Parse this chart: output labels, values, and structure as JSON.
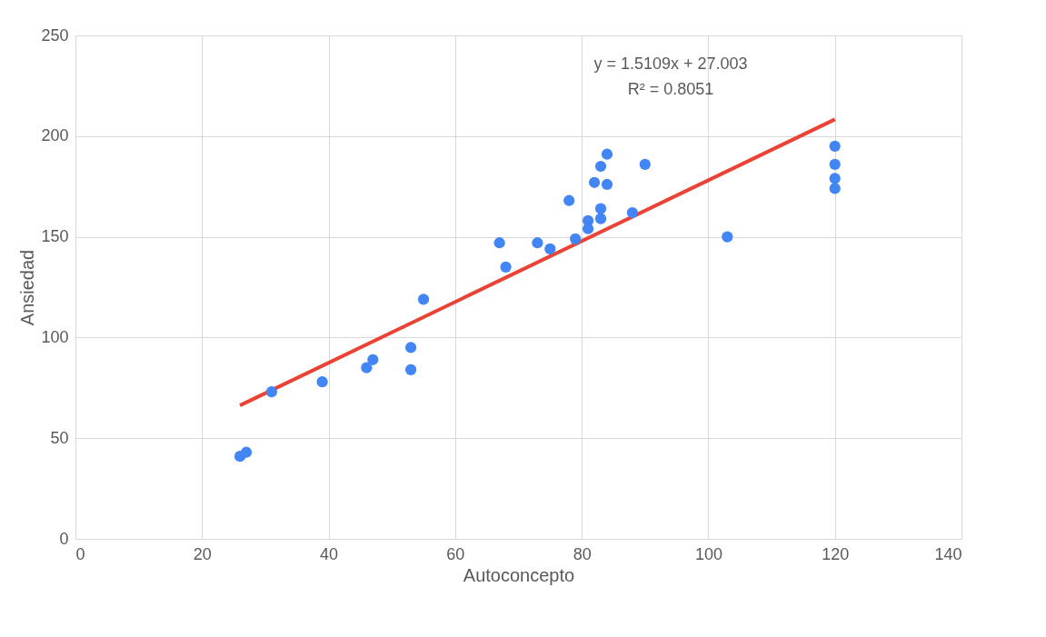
{
  "chart_data": {
    "type": "scatter",
    "xlabel": "Autoconcepto",
    "ylabel": "Ansiedad",
    "xlim": [
      0,
      140
    ],
    "xticks": [
      0,
      20,
      40,
      60,
      80,
      100,
      120,
      140
    ],
    "ylim": [
      0,
      250
    ],
    "yticks": [
      0,
      50,
      100,
      150,
      200,
      250
    ],
    "grid": true,
    "marker": "circle",
    "annotations": [
      "y = 1.5109x + 27.003",
      "R² = 0.8051"
    ],
    "series": [
      {
        "color": "#4285f4",
        "x": [
          26,
          27,
          31,
          39,
          46,
          47,
          53,
          53,
          55,
          67,
          68,
          73,
          75,
          78,
          79,
          81,
          81,
          82,
          83,
          83,
          83,
          84,
          84,
          88,
          90,
          103,
          120,
          120,
          120,
          120
        ],
        "values": [
          41,
          43,
          73,
          78,
          85,
          89,
          95,
          84,
          119,
          147,
          135,
          147,
          144,
          168,
          149,
          158,
          154,
          177,
          185,
          164,
          159,
          191,
          176,
          162,
          186,
          150,
          195,
          186,
          179,
          174
        ]
      },
      {
        "type": "line",
        "color": "#ea4335",
        "line_style": "solid",
        "marker": "none",
        "x": [
          26,
          120
        ],
        "values": [
          66.3,
          208.3
        ]
      }
    ]
  }
}
